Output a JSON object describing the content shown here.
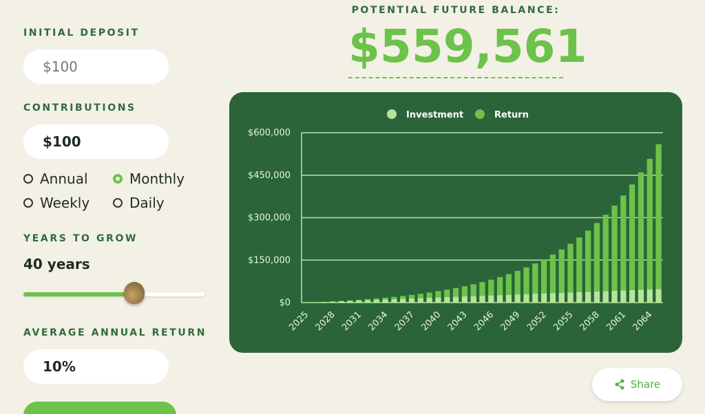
{
  "form": {
    "initial_deposit": {
      "label": "INITIAL DEPOSIT",
      "value": "$100"
    },
    "contributions": {
      "label": "CONTRIBUTIONS",
      "value": "$100",
      "options": [
        "Annual",
        "Monthly",
        "Weekly",
        "Daily"
      ],
      "selected": "Monthly"
    },
    "years": {
      "label": "YEARS TO GROW",
      "value": "40 years"
    },
    "annual_return": {
      "label": "AVERAGE ANNUAL RETURN",
      "value": "10%"
    }
  },
  "result": {
    "label": "POTENTIAL FUTURE BALANCE:",
    "value": "$559,561"
  },
  "share": "Share",
  "chart_data": {
    "type": "stacked_bar",
    "categories": [
      "2025",
      null,
      null,
      "2028",
      null,
      null,
      "2031",
      null,
      null,
      "2034",
      null,
      null,
      "2037",
      null,
      null,
      "2040",
      null,
      null,
      "2043",
      null,
      null,
      "2046",
      null,
      null,
      "2049",
      null,
      null,
      "2052",
      null,
      null,
      "2055",
      null,
      null,
      "2058",
      null,
      null,
      "2061",
      null,
      null,
      "2064",
      null
    ],
    "series": [
      {
        "name": "Investment",
        "color": "#b5e59b",
        "values": [
          100,
          1300,
          2500,
          3700,
          4900,
          6100,
          7300,
          8500,
          9700,
          10900,
          12100,
          13300,
          14500,
          15700,
          16900,
          18100,
          19300,
          20500,
          21700,
          22900,
          24100,
          25300,
          26500,
          27700,
          28900,
          30100,
          31300,
          32500,
          33700,
          34900,
          36100,
          37300,
          38500,
          39700,
          40900,
          42100,
          43300,
          44500,
          45700,
          46900,
          48100
        ]
      },
      {
        "name": "Return",
        "color": "#6cc24a",
        "values": [
          0,
          64,
          255,
          584,
          1066,
          1717,
          2553,
          3592,
          4855,
          6365,
          8146,
          10224,
          12631,
          15398,
          18562,
          22162,
          26242,
          30850,
          36040,
          41868,
          48399,
          55702,
          63857,
          72946,
          83065,
          94316,
          106811,
          120676,
          136048,
          153077,
          171929,
          192786,
          215848,
          241337,
          269495,
          300588,
          334911,
          372786,
          414570,
          460650,
          511461
        ]
      }
    ],
    "ylim": [
      0,
      600000
    ],
    "yticks": [
      {
        "value": 0,
        "label": "$0"
      },
      {
        "value": 150000,
        "label": "$150,000"
      },
      {
        "value": 300000,
        "label": "$300,000"
      },
      {
        "value": 450000,
        "label": "$450,000"
      },
      {
        "value": 600000,
        "label": "$600,000"
      }
    ],
    "grid": true,
    "legend": "top"
  }
}
